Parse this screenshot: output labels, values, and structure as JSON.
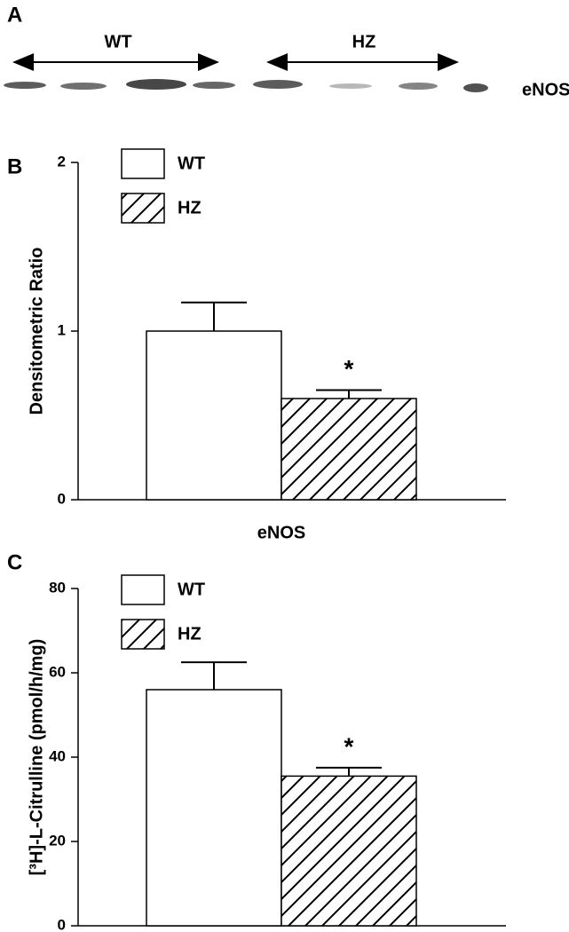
{
  "panel_a": {
    "label": "A",
    "groups": [
      "WT",
      "HZ"
    ],
    "band_label": "eNOS"
  },
  "chart_data": [
    {
      "type": "bar",
      "panel": "B",
      "y_label": "Densitometric Ratio",
      "x_label": "eNOS",
      "ylim": [
        0,
        2
      ],
      "yticks": [
        0,
        1,
        2
      ],
      "annotation": "*",
      "series": [
        {
          "name": "WT",
          "color": "#ffffff",
          "hatch": false,
          "values": [
            1.0
          ],
          "errors": [
            0.17
          ]
        },
        {
          "name": "HZ",
          "color": "#ffffff",
          "hatch": true,
          "values": [
            0.6
          ],
          "errors": [
            0.05
          ]
        }
      ]
    },
    {
      "type": "bar",
      "panel": "C",
      "y_label": "[³H]-L-Citrulline (pmol/h/mg)",
      "ylim": [
        0,
        80
      ],
      "yticks": [
        0,
        20,
        40,
        60,
        80
      ],
      "annotation": "*",
      "series": [
        {
          "name": "WT",
          "color": "#ffffff",
          "hatch": false,
          "values": [
            56
          ],
          "errors": [
            6.5
          ]
        },
        {
          "name": "HZ",
          "color": "#ffffff",
          "hatch": true,
          "values": [
            35.5
          ],
          "errors": [
            2
          ]
        }
      ]
    }
  ]
}
